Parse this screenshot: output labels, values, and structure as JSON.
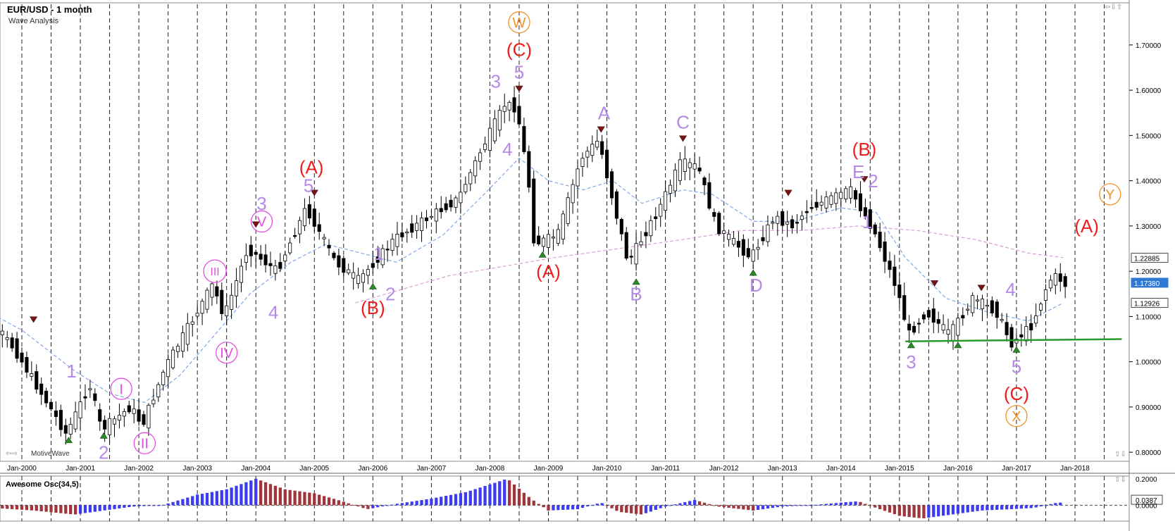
{
  "header": {
    "title": "EUR/USD - 1 month",
    "subtitle": "Wave Analysis"
  },
  "brand": "MotiveWave",
  "oscillator": {
    "title": "Awesome Osc(34,5)",
    "axis_labels": [
      "0.2000",
      "0.0387",
      "0.0000"
    ]
  },
  "icons": {
    "window_controls": "minimize-maximize-close-icons",
    "nav_left": "pan-arrows-icon",
    "nav_right": "scroll-up-icon"
  },
  "colors": {
    "up_candle": "#ffffff",
    "down_candle": "#000000",
    "ma_fast": "#7fa9e8",
    "ma_slow": "#d8a0d8",
    "support_line": "#2a9a2a",
    "wave_red": "#ee1c1c",
    "wave_lilac": "#b48ae6",
    "wave_magenta": "#e34fe3",
    "wave_orange": "#f0932a",
    "osc_up": "#3c3cf0",
    "osc_down": "#a0353a",
    "last_price_bg": "#2f78d3"
  },
  "chart_data": {
    "type": "candlestick",
    "title": "EUR/USD - 1 month",
    "subtitle": "Wave Analysis",
    "x_tick_labels": [
      "Jan-2000",
      "Jan-2001",
      "Jan-2002",
      "Jan-2003",
      "Jan-2004",
      "Jan-2005",
      "Jan-2006",
      "Jan-2007",
      "Jan-2008",
      "Jan-2009",
      "Jan-2010",
      "Jan-2011",
      "Jan-2012",
      "Jan-2013",
      "Jan-2014",
      "Jan-2015",
      "Jan-2016",
      "Jan-2017",
      "Jan-2018"
    ],
    "y_tick_labels": [
      "1.70000",
      "1.60000",
      "1.50000",
      "1.40000",
      "1.30000",
      "1.20000",
      "1.10000",
      "1.00000",
      "0.90000",
      "0.80000"
    ],
    "ylim": [
      0.78,
      1.79
    ],
    "price_labels": [
      {
        "value": 1.22885,
        "text": "1.22885"
      },
      {
        "value": 1.1738,
        "text": "1.17380",
        "highlight": true
      },
      {
        "value": 1.12926,
        "text": "1.12926"
      }
    ],
    "price_path": [
      {
        "x": 1999.0,
        "y": 1.17
      },
      {
        "x": 1999.9,
        "y": 1.03
      },
      {
        "x": 2000.8,
        "y": 0.84
      },
      {
        "x": 2001.2,
        "y": 0.95
      },
      {
        "x": 2001.4,
        "y": 0.85
      },
      {
        "x": 2001.9,
        "y": 0.9
      },
      {
        "x": 2002.1,
        "y": 0.86
      },
      {
        "x": 2002.5,
        "y": 0.99
      },
      {
        "x": 2003.3,
        "y": 1.17
      },
      {
        "x": 2003.5,
        "y": 1.1
      },
      {
        "x": 2003.9,
        "y": 1.25
      },
      {
        "x": 2004.4,
        "y": 1.2
      },
      {
        "x": 2004.9,
        "y": 1.34
      },
      {
        "x": 2005.4,
        "y": 1.22
      },
      {
        "x": 2005.8,
        "y": 1.18
      },
      {
        "x": 2006.4,
        "y": 1.27
      },
      {
        "x": 2007.0,
        "y": 1.32
      },
      {
        "x": 2007.5,
        "y": 1.36
      },
      {
        "x": 2007.9,
        "y": 1.47
      },
      {
        "x": 2008.3,
        "y": 1.57
      },
      {
        "x": 2008.5,
        "y": 1.56
      },
      {
        "x": 2008.7,
        "y": 1.4
      },
      {
        "x": 2008.8,
        "y": 1.26
      },
      {
        "x": 2009.2,
        "y": 1.28
      },
      {
        "x": 2009.6,
        "y": 1.45
      },
      {
        "x": 2009.9,
        "y": 1.49
      },
      {
        "x": 2010.1,
        "y": 1.38
      },
      {
        "x": 2010.4,
        "y": 1.22
      },
      {
        "x": 2010.9,
        "y": 1.33
      },
      {
        "x": 2011.3,
        "y": 1.44
      },
      {
        "x": 2011.6,
        "y": 1.43
      },
      {
        "x": 2011.9,
        "y": 1.3
      },
      {
        "x": 2012.5,
        "y": 1.23
      },
      {
        "x": 2012.9,
        "y": 1.32
      },
      {
        "x": 2013.2,
        "y": 1.3
      },
      {
        "x": 2013.5,
        "y": 1.34
      },
      {
        "x": 2014.2,
        "y": 1.38
      },
      {
        "x": 2014.6,
        "y": 1.29
      },
      {
        "x": 2015.0,
        "y": 1.16
      },
      {
        "x": 2015.2,
        "y": 1.06
      },
      {
        "x": 2015.5,
        "y": 1.11
      },
      {
        "x": 2015.9,
        "y": 1.06
      },
      {
        "x": 2016.3,
        "y": 1.14
      },
      {
        "x": 2016.7,
        "y": 1.11
      },
      {
        "x": 2016.95,
        "y": 1.04
      },
      {
        "x": 2017.3,
        "y": 1.08
      },
      {
        "x": 2017.6,
        "y": 1.18
      },
      {
        "x": 2017.75,
        "y": 1.19
      },
      {
        "x": 2017.85,
        "y": 1.17
      }
    ],
    "ma_fast": [
      {
        "x": 1999.0,
        "y": 1.14
      },
      {
        "x": 2000.0,
        "y": 1.07
      },
      {
        "x": 2000.9,
        "y": 0.98
      },
      {
        "x": 2001.5,
        "y": 0.93
      },
      {
        "x": 2002.1,
        "y": 0.91
      },
      {
        "x": 2002.7,
        "y": 0.97
      },
      {
        "x": 2003.3,
        "y": 1.06
      },
      {
        "x": 2003.9,
        "y": 1.15
      },
      {
        "x": 2004.6,
        "y": 1.22
      },
      {
        "x": 2005.2,
        "y": 1.26
      },
      {
        "x": 2005.8,
        "y": 1.24
      },
      {
        "x": 2006.4,
        "y": 1.22
      },
      {
        "x": 2007.2,
        "y": 1.28
      },
      {
        "x": 2007.9,
        "y": 1.37
      },
      {
        "x": 2008.5,
        "y": 1.45
      },
      {
        "x": 2009.0,
        "y": 1.4
      },
      {
        "x": 2009.6,
        "y": 1.38
      },
      {
        "x": 2010.1,
        "y": 1.4
      },
      {
        "x": 2010.6,
        "y": 1.35
      },
      {
        "x": 2011.3,
        "y": 1.38
      },
      {
        "x": 2011.8,
        "y": 1.37
      },
      {
        "x": 2012.5,
        "y": 1.31
      },
      {
        "x": 2013.2,
        "y": 1.31
      },
      {
        "x": 2014.0,
        "y": 1.34
      },
      {
        "x": 2014.6,
        "y": 1.33
      },
      {
        "x": 2015.1,
        "y": 1.23
      },
      {
        "x": 2015.8,
        "y": 1.14
      },
      {
        "x": 2016.5,
        "y": 1.11
      },
      {
        "x": 2017.2,
        "y": 1.09
      },
      {
        "x": 2017.8,
        "y": 1.13
      }
    ],
    "ma_slow": [
      {
        "x": 2005.7,
        "y": 1.13
      },
      {
        "x": 2006.5,
        "y": 1.16
      },
      {
        "x": 2007.3,
        "y": 1.19
      },
      {
        "x": 2008.2,
        "y": 1.21
      },
      {
        "x": 2009.1,
        "y": 1.23
      },
      {
        "x": 2010.2,
        "y": 1.25
      },
      {
        "x": 2011.3,
        "y": 1.27
      },
      {
        "x": 2012.3,
        "y": 1.29
      },
      {
        "x": 2013.3,
        "y": 1.29
      },
      {
        "x": 2014.3,
        "y": 1.3
      },
      {
        "x": 2015.3,
        "y": 1.29
      },
      {
        "x": 2016.3,
        "y": 1.27
      },
      {
        "x": 2017.2,
        "y": 1.24
      },
      {
        "x": 2017.8,
        "y": 1.23
      }
    ],
    "support_line": {
      "x1": 2015.1,
      "x2": 2018.8,
      "y1": 1.045,
      "y2": 1.05
    },
    "pivots": [
      {
        "x": 1999.0,
        "y": 1.19,
        "dir": "down"
      },
      {
        "x": 2000.2,
        "y": 1.09,
        "dir": "down"
      },
      {
        "x": 2000.8,
        "y": 0.83,
        "dir": "up"
      },
      {
        "x": 2001.4,
        "y": 0.84,
        "dir": "up"
      },
      {
        "x": 2004.0,
        "y": 1.3,
        "dir": "down"
      },
      {
        "x": 2005.0,
        "y": 1.37,
        "dir": "down"
      },
      {
        "x": 2006.0,
        "y": 1.17,
        "dir": "up"
      },
      {
        "x": 2008.5,
        "y": 1.6,
        "dir": "down"
      },
      {
        "x": 2008.9,
        "y": 1.24,
        "dir": "up"
      },
      {
        "x": 2009.9,
        "y": 1.51,
        "dir": "down"
      },
      {
        "x": 2010.5,
        "y": 1.18,
        "dir": "up"
      },
      {
        "x": 2011.3,
        "y": 1.49,
        "dir": "down"
      },
      {
        "x": 2012.5,
        "y": 1.2,
        "dir": "up"
      },
      {
        "x": 2013.1,
        "y": 1.37,
        "dir": "down"
      },
      {
        "x": 2014.4,
        "y": 1.4,
        "dir": "down"
      },
      {
        "x": 2015.2,
        "y": 1.04,
        "dir": "up"
      },
      {
        "x": 2015.6,
        "y": 1.17,
        "dir": "down"
      },
      {
        "x": 2016.0,
        "y": 1.04,
        "dir": "up"
      },
      {
        "x": 2016.4,
        "y": 1.16,
        "dir": "down"
      },
      {
        "x": 2017.0,
        "y": 1.03,
        "dir": "up"
      }
    ],
    "wave_labels": [
      {
        "text": "W",
        "x": 2008.5,
        "y": 1.75,
        "color": "orange",
        "circled": true
      },
      {
        "text": "(C)",
        "x": 2008.5,
        "y": 1.69,
        "color": "red"
      },
      {
        "text": "5",
        "x": 2008.5,
        "y": 1.64,
        "color": "lilac"
      },
      {
        "text": "3",
        "x": 2008.1,
        "y": 1.62,
        "color": "lilac"
      },
      {
        "text": "4",
        "x": 2008.3,
        "y": 1.47,
        "color": "lilac"
      },
      {
        "text": "A",
        "x": 2009.95,
        "y": 1.55,
        "color": "lilac"
      },
      {
        "text": "C",
        "x": 2011.3,
        "y": 1.53,
        "color": "lilac"
      },
      {
        "text": "(B)",
        "x": 2014.4,
        "y": 1.47,
        "color": "red"
      },
      {
        "text": "E",
        "x": 2014.3,
        "y": 1.42,
        "color": "lilac"
      },
      {
        "text": "2",
        "x": 2014.55,
        "y": 1.4,
        "color": "lilac"
      },
      {
        "text": "1",
        "x": 2014.45,
        "y": 1.31,
        "color": "lilac"
      },
      {
        "text": "(A)",
        "x": 2004.95,
        "y": 1.43,
        "color": "red"
      },
      {
        "text": "5",
        "x": 2004.9,
        "y": 1.39,
        "color": "lilac"
      },
      {
        "text": "3",
        "x": 2004.1,
        "y": 1.35,
        "color": "lilac"
      },
      {
        "text": "V",
        "x": 2004.1,
        "y": 1.31,
        "color": "magenta",
        "circled": true
      },
      {
        "text": "III",
        "x": 2003.3,
        "y": 1.2,
        "color": "magenta",
        "circled": true
      },
      {
        "text": "IV",
        "x": 2003.5,
        "y": 1.02,
        "color": "magenta",
        "circled": true
      },
      {
        "text": "4",
        "x": 2004.3,
        "y": 1.11,
        "color": "lilac"
      },
      {
        "text": "1",
        "x": 2006.1,
        "y": 1.24,
        "color": "lilac"
      },
      {
        "text": "2",
        "x": 2006.3,
        "y": 1.15,
        "color": "lilac"
      },
      {
        "text": "(B)",
        "x": 2006.0,
        "y": 1.12,
        "color": "red"
      },
      {
        "text": "(A)",
        "x": 2009.0,
        "y": 1.2,
        "color": "red"
      },
      {
        "text": "B",
        "x": 2010.5,
        "y": 1.15,
        "color": "lilac"
      },
      {
        "text": "D",
        "x": 2012.55,
        "y": 1.17,
        "color": "lilac"
      },
      {
        "text": "1",
        "x": 2000.85,
        "y": 0.98,
        "color": "lilac"
      },
      {
        "text": "I",
        "x": 2001.7,
        "y": 0.94,
        "color": "magenta",
        "circled": true
      },
      {
        "text": "2",
        "x": 2001.4,
        "y": 0.8,
        "color": "lilac"
      },
      {
        "text": "II",
        "x": 2002.1,
        "y": 0.82,
        "color": "magenta",
        "circled": true
      },
      {
        "text": "3",
        "x": 2015.2,
        "y": 1.0,
        "color": "lilac"
      },
      {
        "text": "4",
        "x": 2016.9,
        "y": 1.16,
        "color": "lilac"
      },
      {
        "text": "5",
        "x": 2017.0,
        "y": 0.99,
        "color": "lilac"
      },
      {
        "text": "(C)",
        "x": 2017.0,
        "y": 0.93,
        "color": "red"
      },
      {
        "text": "X",
        "x": 2017.0,
        "y": 0.88,
        "color": "orange",
        "circled": true
      },
      {
        "text": "Y",
        "x": 2018.6,
        "y": 1.37,
        "color": "orange",
        "circled": true
      },
      {
        "text": "(A)",
        "x": 2018.2,
        "y": 1.3,
        "color": "red"
      }
    ],
    "oscillator": {
      "name": "Awesome Osc(34,5)",
      "ylim": [
        -0.12,
        0.22
      ],
      "path": [
        {
          "x": 1999.0,
          "y": 0.0
        },
        {
          "x": 1999.5,
          "y": -0.02
        },
        {
          "x": 2000.2,
          "y": -0.04
        },
        {
          "x": 2000.9,
          "y": -0.07
        },
        {
          "x": 2001.4,
          "y": -0.04
        },
        {
          "x": 2001.9,
          "y": -0.01
        },
        {
          "x": 2002.4,
          "y": 0.0
        },
        {
          "x": 2003.0,
          "y": 0.08
        },
        {
          "x": 2003.5,
          "y": 0.12
        },
        {
          "x": 2004.0,
          "y": 0.2
        },
        {
          "x": 2004.5,
          "y": 0.12
        },
        {
          "x": 2005.0,
          "y": 0.09
        },
        {
          "x": 2005.4,
          "y": 0.04
        },
        {
          "x": 2005.9,
          "y": -0.03
        },
        {
          "x": 2006.4,
          "y": 0.01
        },
        {
          "x": 2007.0,
          "y": 0.05
        },
        {
          "x": 2007.6,
          "y": 0.1
        },
        {
          "x": 2008.3,
          "y": 0.2
        },
        {
          "x": 2008.7,
          "y": 0.05
        },
        {
          "x": 2009.0,
          "y": -0.04
        },
        {
          "x": 2009.5,
          "y": -0.03
        },
        {
          "x": 2009.9,
          "y": 0.02
        },
        {
          "x": 2010.2,
          "y": -0.05
        },
        {
          "x": 2010.6,
          "y": -0.07
        },
        {
          "x": 2011.0,
          "y": -0.01
        },
        {
          "x": 2011.5,
          "y": 0.04
        },
        {
          "x": 2011.9,
          "y": -0.01
        },
        {
          "x": 2012.5,
          "y": -0.04
        },
        {
          "x": 2013.0,
          "y": -0.01
        },
        {
          "x": 2013.5,
          "y": 0.0
        },
        {
          "x": 2014.0,
          "y": 0.02
        },
        {
          "x": 2014.3,
          "y": 0.03
        },
        {
          "x": 2014.6,
          "y": -0.02
        },
        {
          "x": 2015.0,
          "y": -0.08
        },
        {
          "x": 2015.4,
          "y": -0.1
        },
        {
          "x": 2015.9,
          "y": -0.07
        },
        {
          "x": 2016.4,
          "y": -0.04
        },
        {
          "x": 2016.9,
          "y": -0.03
        },
        {
          "x": 2017.3,
          "y": -0.02
        },
        {
          "x": 2017.7,
          "y": 0.02
        }
      ]
    }
  }
}
